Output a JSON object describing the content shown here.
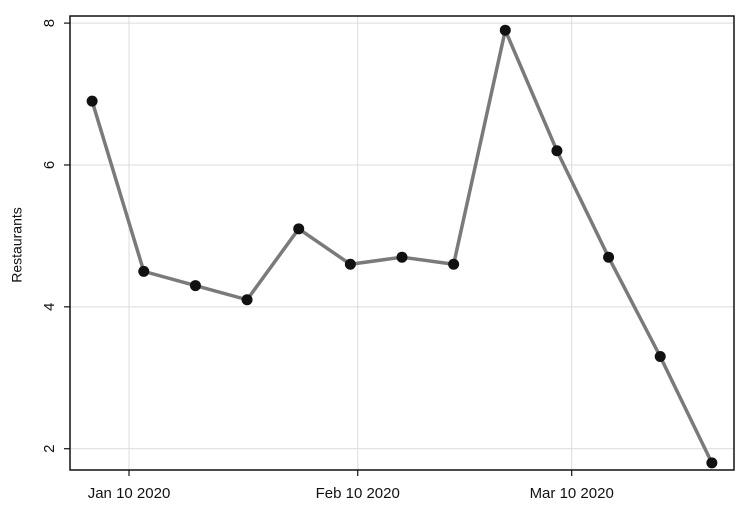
{
  "chart_data": {
    "type": "line",
    "y_label": "Restaurants",
    "x": [
      "2020-01-05",
      "2020-01-12",
      "2020-01-19",
      "2020-01-26",
      "2020-02-02",
      "2020-02-09",
      "2020-02-16",
      "2020-02-23",
      "2020-03-01",
      "2020-03-08",
      "2020-03-15",
      "2020-03-22",
      "2020-03-29"
    ],
    "series": [
      {
        "color": "#7a7a7a",
        "marker_color": "#111111",
        "values": [
          6.9,
          4.5,
          4.3,
          4.1,
          5.1,
          4.6,
          4.7,
          4.6,
          7.9,
          6.2,
          4.7,
          3.3,
          1.8
        ]
      }
    ],
    "xlim": [
      "2020-01-02",
      "2020-04-01"
    ],
    "xticks": [
      {
        "value": "2020-01-10",
        "label": "Jan 10 2020"
      },
      {
        "value": "2020-02-10",
        "label": "Feb 10 2020"
      },
      {
        "value": "2020-03-10",
        "label": "Mar 10 2020"
      }
    ],
    "ylim": [
      1.7,
      8.1
    ],
    "yticks": [
      2,
      4,
      6,
      8
    ],
    "grid": true
  }
}
